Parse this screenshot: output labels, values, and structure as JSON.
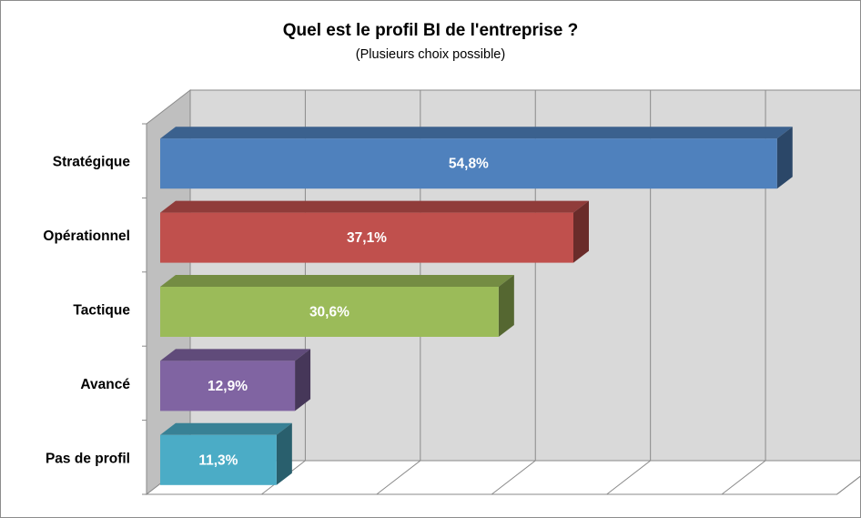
{
  "chart_data": {
    "type": "bar",
    "orientation": "horizontal",
    "style": "3d",
    "title": "Quel est le profil BI de l'entreprise ?",
    "subtitle": "(Plusieurs choix possible)",
    "xlabel": "",
    "ylabel": "",
    "categories": [
      "Stratégique",
      "Opérationnel",
      "Tactique",
      "Avancé",
      "Pas de profil"
    ],
    "values": [
      54.8,
      37.1,
      30.6,
      12.9,
      11.3
    ],
    "data_labels": [
      "54,8%",
      "37,1%",
      "30,6%",
      "12,9%",
      "11,3%"
    ],
    "colors": [
      "#4f81bd",
      "#c0504d",
      "#9bbb59",
      "#8064a2",
      "#4bacc6"
    ],
    "xlim": [
      0,
      60
    ],
    "grid": true,
    "legend": "none",
    "axis_tick_labels_shown": false
  }
}
